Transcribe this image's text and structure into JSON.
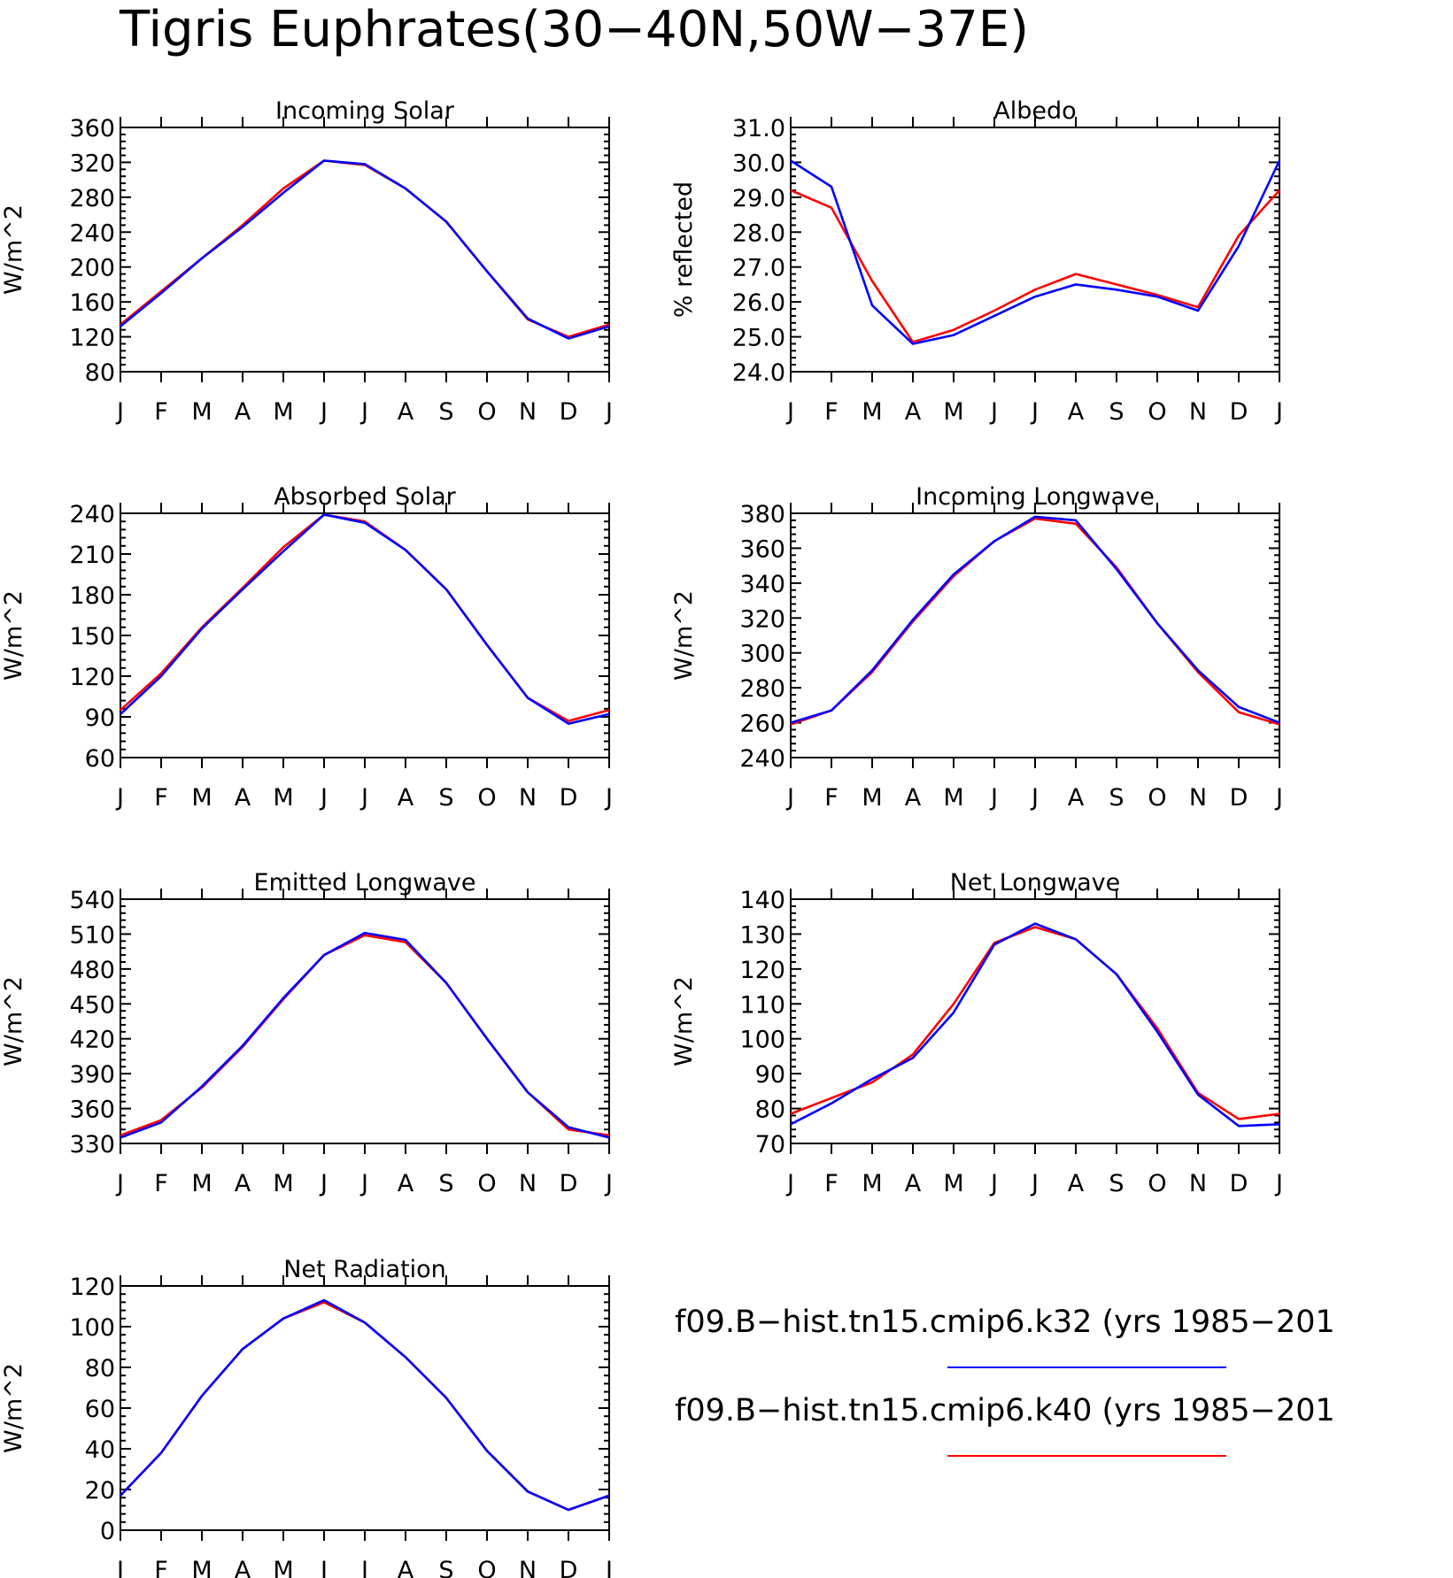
{
  "figure": {
    "title": "Tigris Euphrates(30−40N,50W−37E)"
  },
  "legend": {
    "entries": [
      {
        "label": "f09.B−hist.tn15.cmip6.k32 (yrs 1985−201",
        "color": "#0000ff"
      },
      {
        "label": "f09.B−hist.tn15.cmip6.k40 (yrs 1985−201",
        "color": "#ff0000"
      }
    ]
  },
  "chart_data": [
    {
      "type": "line",
      "title": "Incoming Solar",
      "ylabel": "W/m^2",
      "x": [
        "J",
        "F",
        "M",
        "A",
        "M",
        "J",
        "J",
        "A",
        "S",
        "O",
        "N",
        "D",
        "J"
      ],
      "ylim": [
        80,
        360
      ],
      "yticks": [
        "80",
        "120",
        "160",
        "200",
        "240",
        "280",
        "320",
        "360"
      ],
      "series": [
        {
          "color": "#ff0000",
          "values": [
            134,
            172,
            210,
            248,
            290,
            322,
            317,
            290,
            252,
            195,
            140,
            120,
            134
          ]
        },
        {
          "color": "#0000ff",
          "values": [
            132,
            170,
            210,
            246,
            285,
            322,
            318,
            290,
            252,
            195,
            141,
            118,
            132
          ]
        }
      ]
    },
    {
      "type": "line",
      "title": "Albedo",
      "ylabel": "% reflected",
      "x": [
        "J",
        "F",
        "M",
        "A",
        "M",
        "J",
        "J",
        "A",
        "S",
        "O",
        "N",
        "D",
        "J"
      ],
      "ylim": [
        24.0,
        31.0
      ],
      "yticks": [
        "24.0",
        "25.0",
        "26.0",
        "27.0",
        "28.0",
        "29.0",
        "30.0",
        "31.0"
      ],
      "series": [
        {
          "color": "#ff0000",
          "values": [
            29.2,
            28.7,
            26.6,
            24.85,
            25.2,
            25.75,
            26.35,
            26.8,
            26.5,
            26.2,
            25.85,
            27.9,
            29.2
          ]
        },
        {
          "color": "#0000ff",
          "values": [
            30.05,
            29.3,
            25.9,
            24.8,
            25.05,
            25.6,
            26.15,
            26.5,
            26.35,
            26.15,
            25.75,
            27.6,
            30.05
          ]
        }
      ]
    },
    {
      "type": "line",
      "title": "Absorbed Solar",
      "ylabel": "W/m^2",
      "x": [
        "J",
        "F",
        "M",
        "A",
        "M",
        "J",
        "J",
        "A",
        "S",
        "O",
        "N",
        "D",
        "J"
      ],
      "ylim": [
        60,
        240
      ],
      "yticks": [
        "60",
        "90",
        "120",
        "150",
        "180",
        "210",
        "240"
      ],
      "series": [
        {
          "color": "#ff0000",
          "values": [
            95,
            122,
            156,
            185,
            215,
            239,
            234,
            213,
            184,
            143,
            104,
            87,
            95
          ]
        },
        {
          "color": "#0000ff",
          "values": [
            92,
            120,
            155,
            184,
            212,
            239,
            233,
            213,
            184,
            143,
            104,
            85,
            92
          ]
        }
      ]
    },
    {
      "type": "line",
      "title": "Incoming Longwave",
      "ylabel": "W/m^2",
      "x": [
        "J",
        "F",
        "M",
        "A",
        "M",
        "J",
        "J",
        "A",
        "S",
        "O",
        "N",
        "D",
        "J"
      ],
      "ylim": [
        240,
        380
      ],
      "yticks": [
        "240",
        "260",
        "280",
        "300",
        "320",
        "340",
        "360",
        "380"
      ],
      "series": [
        {
          "color": "#ff0000",
          "values": [
            259,
            267,
            289,
            318,
            344,
            364,
            377,
            374,
            349,
            317,
            289,
            266,
            259
          ]
        },
        {
          "color": "#0000ff",
          "values": [
            260,
            267,
            290,
            319,
            345,
            364,
            378,
            376,
            348,
            317,
            290,
            269,
            260
          ]
        }
      ]
    },
    {
      "type": "line",
      "title": "Emitted Longwave",
      "ylabel": "W/m^2",
      "x": [
        "J",
        "F",
        "M",
        "A",
        "M",
        "J",
        "J",
        "A",
        "S",
        "O",
        "N",
        "D",
        "J"
      ],
      "ylim": [
        330,
        540
      ],
      "yticks": [
        "330",
        "360",
        "390",
        "420",
        "450",
        "480",
        "510",
        "540"
      ],
      "series": [
        {
          "color": "#ff0000",
          "values": [
            337,
            350,
            378,
            413,
            454,
            492,
            509,
            503,
            468,
            420,
            374,
            342,
            337
          ]
        },
        {
          "color": "#0000ff",
          "values": [
            335,
            348,
            379,
            414,
            455,
            492,
            511,
            505,
            468,
            420,
            374,
            344,
            335
          ]
        }
      ]
    },
    {
      "type": "line",
      "title": "Net Longwave",
      "ylabel": "W/m^2",
      "x": [
        "J",
        "F",
        "M",
        "A",
        "M",
        "J",
        "J",
        "A",
        "S",
        "O",
        "N",
        "D",
        "J"
      ],
      "ylim": [
        70,
        140
      ],
      "yticks": [
        "70",
        "80",
        "90",
        "100",
        "110",
        "120",
        "130",
        "140"
      ],
      "series": [
        {
          "color": "#ff0000",
          "values": [
            78.5,
            83,
            87.5,
            95.5,
            110,
            127.5,
            132,
            128.5,
            118.5,
            103,
            84.5,
            77,
            78.5
          ]
        },
        {
          "color": "#0000ff",
          "values": [
            75.5,
            81.5,
            88.5,
            94.5,
            107.5,
            127,
            133,
            128.5,
            118.5,
            102,
            84,
            75,
            75.5
          ]
        }
      ]
    },
    {
      "type": "line",
      "title": "Net Radiation",
      "ylabel": "W/m^2",
      "x": [
        "J",
        "F",
        "M",
        "A",
        "M",
        "J",
        "J",
        "A",
        "S",
        "O",
        "N",
        "D",
        "J"
      ],
      "ylim": [
        0,
        120
      ],
      "yticks": [
        "0",
        "20",
        "40",
        "60",
        "80",
        "100",
        "120"
      ],
      "series": [
        {
          "color": "#ff0000",
          "values": [
            17,
            38,
            66,
            89,
            104,
            112,
            102,
            85,
            65,
            39,
            19,
            10,
            17
          ]
        },
        {
          "color": "#0000ff",
          "values": [
            17,
            38,
            66,
            89,
            104,
            113,
            102,
            85,
            65,
            39,
            19,
            10,
            17
          ]
        }
      ]
    }
  ]
}
